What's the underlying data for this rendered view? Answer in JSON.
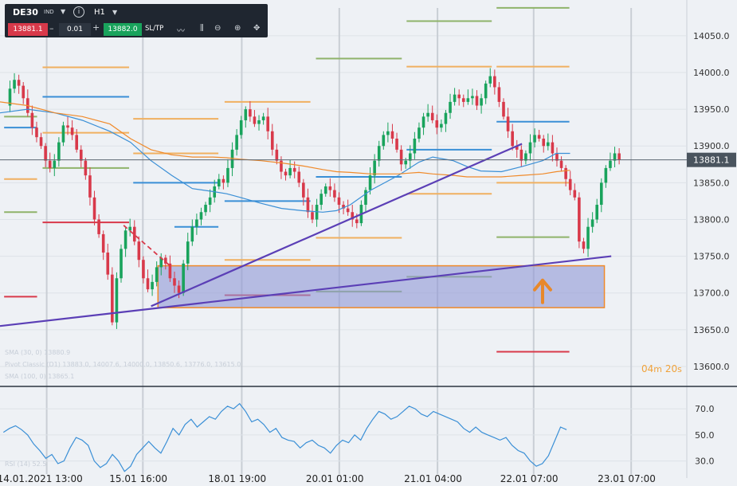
{
  "toolbar": {
    "symbol": "DE30",
    "symbol_tag": "IND",
    "timeframe": "H1",
    "bid": "13881.1",
    "quantity": "0.01",
    "ask": "13882.0",
    "sltp_label": "SL/TP"
  },
  "legend": {
    "sma": "SMA (30, 0) 13880.9",
    "pivot": "Pivot Classic (D1) 13883.0, 14007.6, 14000.0, 13850.6, 13776.0, 13615.0",
    "sma2": "SMA (100, 0) 13865.1",
    "rsi": "RSI (14) 52.5"
  },
  "timer": {
    "minutes": "04",
    "m": "m",
    "seconds": "20",
    "s": "s"
  },
  "colors": {
    "background": "#eef1f5",
    "bull": "#19a35c",
    "bear": "#d8394a",
    "sma_fast": "#3a8fd6",
    "sma_slow": "#f08a2a",
    "trendline": "#5b3fb6",
    "zone_fill": "#8f97d6",
    "zone_border": "#f08a2a",
    "arrow": "#e8882a",
    "price_line": "#5c6670",
    "pivot_green": "#8fb36a",
    "pivot_orange": "#f0b060",
    "pivot_blue": "#3a8fd6",
    "pivot_red": "#d8394a"
  },
  "chart_data": {
    "type": "candlestick",
    "ylim": [
      13575,
      14090
    ],
    "y_ticks": [
      "14050.0",
      "14000.0",
      "13950.0",
      "13900.0",
      "13850.0",
      "13800.0",
      "13750.0",
      "13700.0",
      "13650.0",
      "13600.0"
    ],
    "x_ticks": [
      "14.01.2021 13:00",
      "15.01 16:00",
      "18.01 19:00",
      "20.01 01:00",
      "21.01 04:00",
      "22.01 07:00",
      "23.01 07:00"
    ],
    "current_price": "13881.1",
    "close_path": [
      13955,
      13978,
      13990,
      13982,
      13965,
      13945,
      13925,
      13912,
      13900,
      13880,
      13870,
      13880,
      13905,
      13928,
      13925,
      13915,
      13895,
      13880,
      13860,
      13830,
      13800,
      13780,
      13755,
      13725,
      13660,
      13720,
      13760,
      13785,
      13790,
      13770,
      13745,
      13720,
      13705,
      13715,
      13735,
      13748,
      13740,
      13720,
      13710,
      13700,
      13740,
      13770,
      13790,
      13800,
      13810,
      13820,
      13830,
      13845,
      13855,
      13850,
      13870,
      13895,
      13915,
      13935,
      13950,
      13940,
      13930,
      13935,
      13940,
      13920,
      13895,
      13880,
      13865,
      13860,
      13870,
      13865,
      13850,
      13830,
      13810,
      13800,
      13820,
      13835,
      13845,
      13840,
      13830,
      13820,
      13815,
      13810,
      13800,
      13795,
      13820,
      13840,
      13860,
      13880,
      13900,
      13915,
      13920,
      13910,
      13895,
      13875,
      13880,
      13890,
      13910,
      13925,
      13940,
      13945,
      13935,
      13925,
      13930,
      13945,
      13960,
      13970,
      13965,
      13960,
      13965,
      13968,
      13955,
      13965,
      13985,
      13995,
      13980,
      13960,
      13940,
      13920,
      13900,
      13895,
      13880,
      13890,
      13905,
      13915,
      13910,
      13900,
      13905,
      13890,
      13880,
      13870,
      13855,
      13840,
      13830,
      13770,
      13760,
      13790,
      13800,
      13820,
      13850,
      13870,
      13880,
      13890,
      13881
    ],
    "sma_fast": [
      [
        13945,
        0.0
      ],
      [
        13950,
        0.04
      ],
      [
        13945,
        0.08
      ],
      [
        13935,
        0.12
      ],
      [
        13920,
        0.16
      ],
      [
        13905,
        0.19
      ],
      [
        13880,
        0.22
      ],
      [
        13860,
        0.25
      ],
      [
        13842,
        0.28
      ],
      [
        13838,
        0.31
      ],
      [
        13835,
        0.33
      ],
      [
        13830,
        0.35
      ],
      [
        13822,
        0.38
      ],
      [
        13815,
        0.41
      ],
      [
        13812,
        0.44
      ],
      [
        13810,
        0.47
      ],
      [
        13812,
        0.49
      ],
      [
        13820,
        0.51
      ],
      [
        13840,
        0.54
      ],
      [
        13860,
        0.58
      ],
      [
        13878,
        0.61
      ],
      [
        13885,
        0.63
      ],
      [
        13880,
        0.66
      ],
      [
        13872,
        0.68
      ],
      [
        13866,
        0.7
      ],
      [
        13865,
        0.73
      ],
      [
        13872,
        0.76
      ],
      [
        13880,
        0.79
      ],
      [
        13890,
        0.81
      ],
      [
        13890,
        0.83
      ]
    ],
    "sma_slow": [
      [
        13960,
        0.0
      ],
      [
        13955,
        0.04
      ],
      [
        13945,
        0.08
      ],
      [
        13940,
        0.12
      ],
      [
        13930,
        0.16
      ],
      [
        13910,
        0.19
      ],
      [
        13895,
        0.22
      ],
      [
        13888,
        0.25
      ],
      [
        13885,
        0.28
      ],
      [
        13885,
        0.31
      ],
      [
        13884,
        0.33
      ],
      [
        13882,
        0.35
      ],
      [
        13880,
        0.38
      ],
      [
        13877,
        0.41
      ],
      [
        13873,
        0.44
      ],
      [
        13868,
        0.47
      ],
      [
        13865,
        0.49
      ],
      [
        13864,
        0.51
      ],
      [
        13862,
        0.54
      ],
      [
        13862,
        0.58
      ],
      [
        13864,
        0.61
      ],
      [
        13862,
        0.63
      ],
      [
        13860,
        0.66
      ],
      [
        13858,
        0.68
      ],
      [
        13858,
        0.7
      ],
      [
        13858,
        0.73
      ],
      [
        13860,
        0.76
      ],
      [
        13862,
        0.79
      ],
      [
        13865,
        0.81
      ],
      [
        13867,
        0.83
      ]
    ],
    "trendlines": [
      {
        "from": [
          0.0,
          13655
        ],
        "to": [
          0.89,
          13750
        ]
      },
      {
        "from": [
          0.22,
          13682
        ],
        "to": [
          0.76,
          13903
        ]
      }
    ],
    "zone": {
      "x": [
        0.23,
        0.88
      ],
      "y": [
        13680,
        13737
      ]
    },
    "arrow_at": [
      0.79,
      13700
    ],
    "dashed_red": [
      [
        0.18,
        13792
      ],
      [
        0.25,
        13735
      ]
    ],
    "pivot_segments": [
      {
        "x": [
          0.006,
          0.054
        ],
        "y": 13940,
        "color": "pivot_green"
      },
      {
        "x": [
          0.006,
          0.054
        ],
        "y": 13855,
        "color": "pivot_orange"
      },
      {
        "x": [
          0.006,
          0.054
        ],
        "y": 13925,
        "color": "pivot_blue"
      },
      {
        "x": [
          0.006,
          0.054
        ],
        "y": 13810,
        "color": "pivot_green"
      },
      {
        "x": [
          0.006,
          0.054
        ],
        "y": 13695,
        "color": "pivot_red"
      },
      {
        "x": [
          0.062,
          0.188
        ],
        "y": 14007,
        "color": "pivot_orange"
      },
      {
        "x": [
          0.062,
          0.188
        ],
        "y": 13967,
        "color": "pivot_blue"
      },
      {
        "x": [
          0.062,
          0.188
        ],
        "y": 13918,
        "color": "pivot_orange"
      },
      {
        "x": [
          0.062,
          0.188
        ],
        "y": 13870,
        "color": "pivot_green"
      },
      {
        "x": [
          0.062,
          0.188
        ],
        "y": 13796,
        "color": "pivot_red"
      },
      {
        "x": [
          0.194,
          0.318
        ],
        "y": 13937,
        "color": "pivot_orange"
      },
      {
        "x": [
          0.194,
          0.318
        ],
        "y": 13890,
        "color": "pivot_orange"
      },
      {
        "x": [
          0.194,
          0.318
        ],
        "y": 13850,
        "color": "pivot_blue"
      },
      {
        "x": [
          0.254,
          0.318
        ],
        "y": 13790,
        "color": "pivot_blue"
      },
      {
        "x": [
          0.327,
          0.452
        ],
        "y": 13960,
        "color": "pivot_orange"
      },
      {
        "x": [
          0.327,
          0.452
        ],
        "y": 13825,
        "color": "pivot_blue"
      },
      {
        "x": [
          0.327,
          0.452
        ],
        "y": 13745,
        "color": "pivot_orange"
      },
      {
        "x": [
          0.327,
          0.452
        ],
        "y": 13697,
        "color": "pivot_red"
      },
      {
        "x": [
          0.46,
          0.585
        ],
        "y": 14019,
        "color": "pivot_green"
      },
      {
        "x": [
          0.46,
          0.585
        ],
        "y": 13858,
        "color": "pivot_blue"
      },
      {
        "x": [
          0.46,
          0.585
        ],
        "y": 13775,
        "color": "pivot_orange"
      },
      {
        "x": [
          0.46,
          0.585
        ],
        "y": 13702,
        "color": "pivot_green"
      },
      {
        "x": [
          0.592,
          0.716
        ],
        "y": 14070,
        "color": "pivot_green"
      },
      {
        "x": [
          0.592,
          0.716
        ],
        "y": 14008,
        "color": "pivot_orange"
      },
      {
        "x": [
          0.592,
          0.716
        ],
        "y": 13895,
        "color": "pivot_blue"
      },
      {
        "x": [
          0.592,
          0.716
        ],
        "y": 13835,
        "color": "pivot_orange"
      },
      {
        "x": [
          0.592,
          0.716
        ],
        "y": 13722,
        "color": "pivot_green"
      },
      {
        "x": [
          0.723,
          0.829
        ],
        "y": 14088,
        "color": "pivot_green"
      },
      {
        "x": [
          0.723,
          0.829
        ],
        "y": 14008,
        "color": "pivot_orange"
      },
      {
        "x": [
          0.723,
          0.829
        ],
        "y": 13933,
        "color": "pivot_blue"
      },
      {
        "x": [
          0.723,
          0.829
        ],
        "y": 13850,
        "color": "pivot_orange"
      },
      {
        "x": [
          0.723,
          0.829
        ],
        "y": 13776,
        "color": "pivot_green"
      },
      {
        "x": [
          0.723,
          0.829
        ],
        "y": 13620,
        "color": "pivot_red"
      }
    ],
    "rsi": {
      "ylim": [
        20,
        78
      ],
      "ticks": [
        "70.0",
        "50.0",
        "30.0"
      ],
      "values": [
        52,
        55,
        57,
        54,
        50,
        43,
        38,
        32,
        35,
        28,
        30,
        40,
        48,
        46,
        42,
        30,
        25,
        28,
        35,
        30,
        22,
        26,
        35,
        40,
        45,
        40,
        36,
        45,
        55,
        50,
        58,
        62,
        56,
        60,
        64,
        62,
        68,
        72,
        70,
        74,
        68,
        60,
        62,
        58,
        52,
        55,
        48,
        46,
        45,
        40,
        44,
        46,
        42,
        40,
        36,
        42,
        46,
        44,
        50,
        46,
        55,
        62,
        68,
        66,
        62,
        64,
        68,
        72,
        70,
        66,
        64,
        68,
        66,
        64,
        62,
        60,
        55,
        52,
        56,
        52,
        50,
        48,
        46,
        48,
        42,
        38,
        36,
        30,
        26,
        28,
        34,
        45,
        56,
        54
      ]
    }
  }
}
